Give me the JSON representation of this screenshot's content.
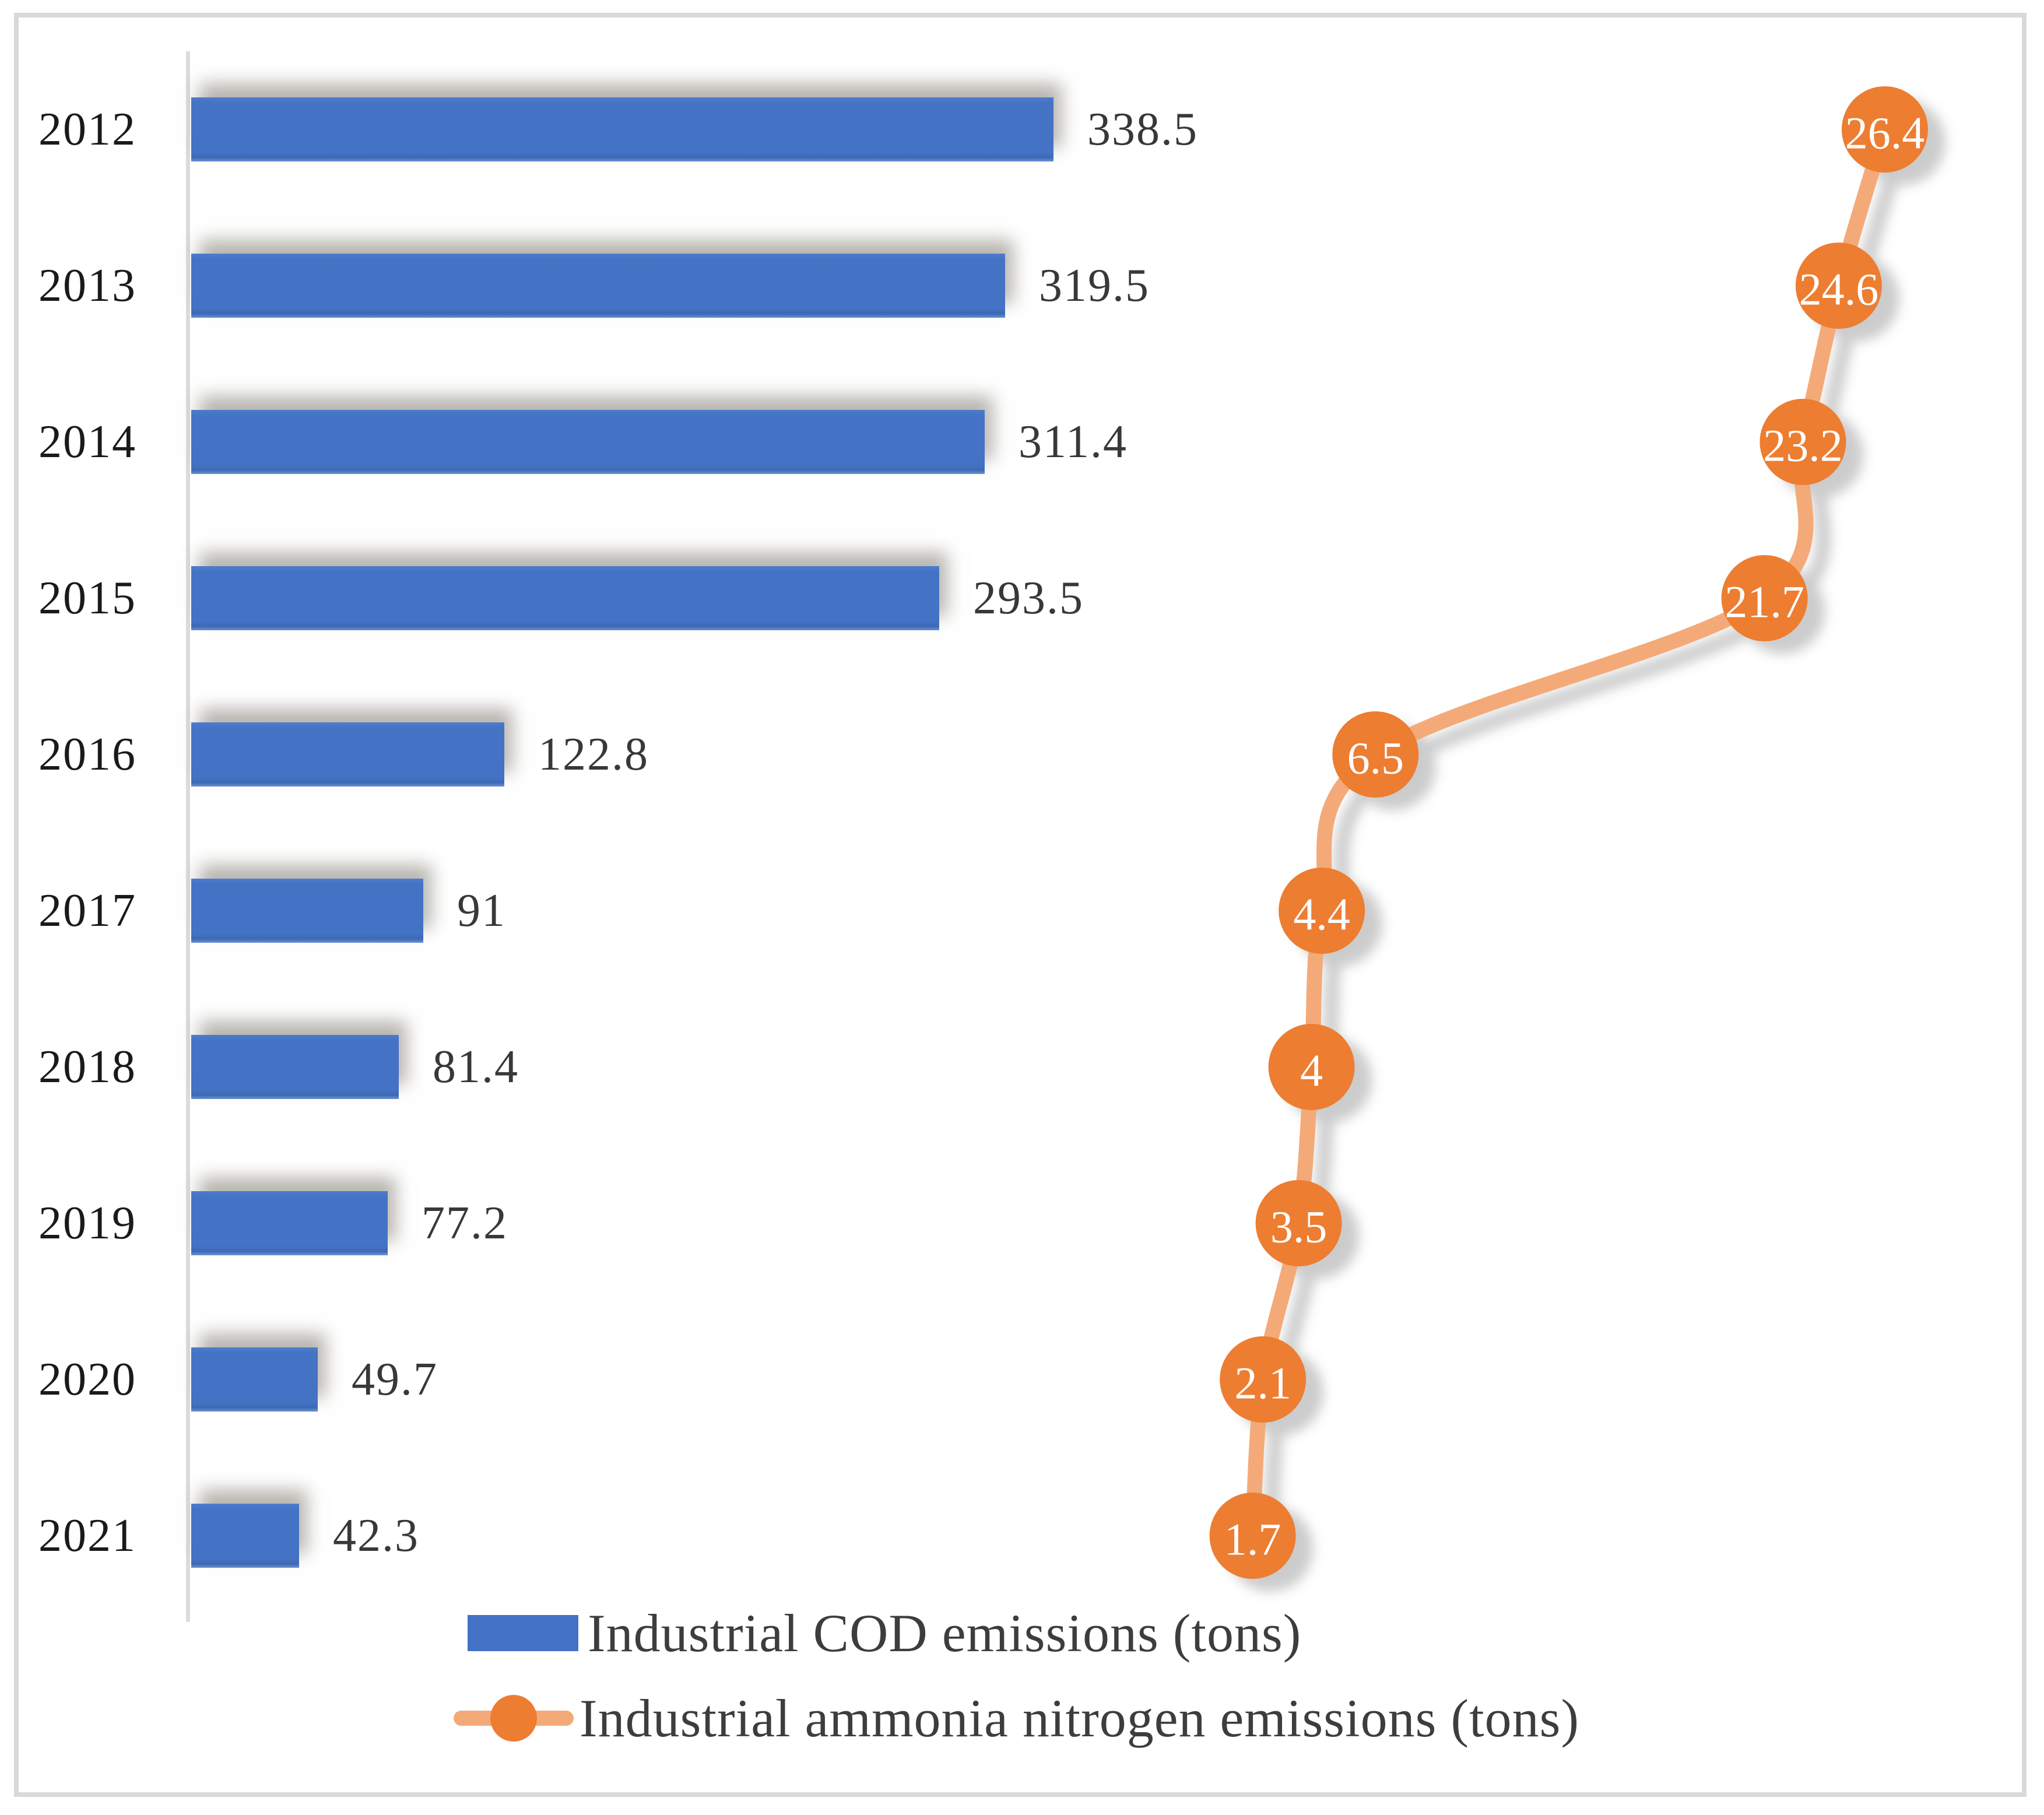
{
  "figure": {
    "background": "#FFFFFF",
    "frame_color": "#D9D9D9",
    "axis_color": "#DCDCDC"
  },
  "chart_data": {
    "type": "bar",
    "subtype": "horizontal-bars-with-line-overlay",
    "title": "",
    "xlabel": "",
    "ylabel": "",
    "categories": [
      "2012",
      "2013",
      "2014",
      "2015",
      "2016",
      "2017",
      "2018",
      "2019",
      "2020",
      "2021"
    ],
    "series": [
      {
        "name": "Industrial COD emissions (tons)",
        "type": "bar",
        "color": "#4472C4",
        "values": [
          338.5,
          319.5,
          311.4,
          293.5,
          122.8,
          91,
          81.4,
          77.2,
          49.7,
          42.3
        ]
      },
      {
        "name": "Industrial ammonia nitrogen emissions (tons)",
        "type": "line",
        "line_color": "#F4AA78",
        "marker_color": "#ED7D31",
        "marker_label_color": "#FFFFFF",
        "smooth": true,
        "values": [
          26.4,
          24.6,
          23.2,
          21.7,
          6.5,
          4.4,
          4,
          3.5,
          2.1,
          1.7
        ]
      }
    ],
    "value_labels_shown": true,
    "grid": false,
    "legend_position": "bottom-left",
    "bar_axis_implied_range": [
      0,
      750
    ],
    "line_axis_implied_range": [
      -42,
      31
    ]
  },
  "legend": {
    "items": [
      {
        "label": "Industrial COD emissions (tons)",
        "swatch": "bar-swatch"
      },
      {
        "label": "Industrial ammonia nitrogen emissions (tons)",
        "swatch": "line-marker-swatch"
      }
    ]
  }
}
